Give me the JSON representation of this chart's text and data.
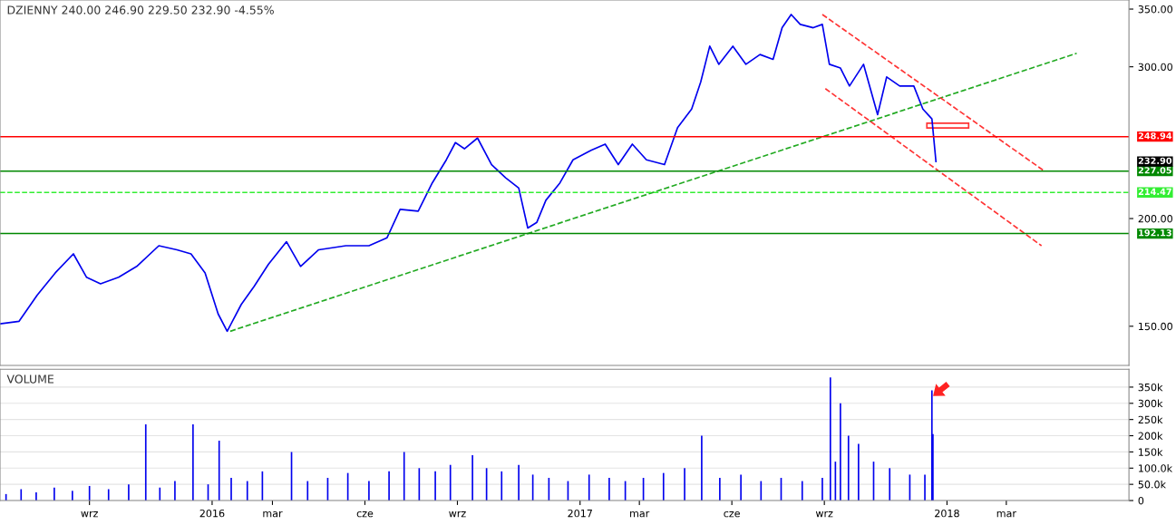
{
  "chart_data": [
    {
      "type": "line",
      "title": "DZIENNY 240.00 246.90 229.50 232.90 -4.55%",
      "log": true,
      "grid": false,
      "legend": false,
      "tick_labels": "y",
      "xlim": [
        "2015-06-04",
        "2018-07-01"
      ],
      "ylim": [
        135.1,
        358.6
      ],
      "yticks": [
        {
          "value": 150,
          "label": "150.00"
        },
        {
          "value": 200,
          "label": "200.00"
        },
        {
          "value": 300,
          "label": "300.00"
        },
        {
          "value": 350,
          "label": "350.00"
        }
      ],
      "series": [
        {
          "color": "#0000ee",
          "line_style": "solid",
          "x": [
            "2015-06-04",
            "2015-06-23",
            "2015-07-11",
            "2015-07-29",
            "2015-08-16",
            "2015-08-29",
            "2015-09-12",
            "2015-09-30",
            "2015-10-18",
            "2015-11-09",
            "2015-11-27",
            "2015-12-11",
            "2015-12-25",
            "2016-01-07",
            "2016-01-16",
            "2016-01-30",
            "2016-02-12",
            "2016-02-26",
            "2016-03-15",
            "2016-03-29",
            "2016-04-16",
            "2016-05-13",
            "2016-06-05",
            "2016-06-23",
            "2016-07-06",
            "2016-07-24",
            "2016-08-07",
            "2016-08-21",
            "2016-08-30",
            "2016-09-08",
            "2016-09-21",
            "2016-10-05",
            "2016-10-19",
            "2016-11-01",
            "2016-11-10",
            "2016-11-19",
            "2016-11-28",
            "2016-12-12",
            "2016-12-25",
            "2017-01-12",
            "2017-01-26",
            "2017-02-08",
            "2017-02-22",
            "2017-03-08",
            "2017-03-26",
            "2017-04-08",
            "2017-04-22",
            "2017-05-01",
            "2017-05-10",
            "2017-05-19",
            "2017-06-02",
            "2017-06-15",
            "2017-06-29",
            "2017-07-12",
            "2017-07-21",
            "2017-07-30",
            "2017-08-08",
            "2017-08-21",
            "2017-08-30",
            "2017-09-06",
            "2017-09-17",
            "2017-09-26",
            "2017-10-10",
            "2017-10-24",
            "2017-11-02",
            "2017-11-15",
            "2017-11-29",
            "2017-12-08",
            "2017-12-17",
            "2017-12-21"
          ],
          "values": [
            151,
            152,
            163,
            173,
            182,
            171,
            168,
            171,
            176,
            186,
            184,
            182,
            173,
            155,
            148,
            159,
            167,
            177,
            188,
            176,
            184,
            186,
            186,
            190,
            205,
            204,
            220,
            234,
            245,
            241,
            248,
            231,
            223,
            217,
            195,
            198,
            210,
            220,
            234,
            240,
            244,
            231,
            244,
            234,
            231,
            255,
            268,
            288,
            317,
            302,
            317,
            302,
            310,
            306,
            333,
            345,
            336,
            333,
            336,
            302,
            299,
            285,
            302,
            264,
            292,
            285,
            285,
            268,
            261,
            232.9
          ]
        },
        {
          "type": "line",
          "color": "#22aa22",
          "line_style": "dashed",
          "x": [
            "2016-01-19",
            "2018-05-10"
          ],
          "values": [
            148,
            311
          ]
        },
        {
          "type": "line",
          "color": "#ff3333",
          "line_style": "dashed",
          "x": [
            "2017-08-30",
            "2018-04-08"
          ],
          "values": [
            345,
            227
          ]
        },
        {
          "type": "line",
          "color": "#ff3333",
          "line_style": "dashed",
          "x": [
            "2017-09-02",
            "2018-04-05"
          ],
          "values": [
            283,
            186
          ]
        }
      ],
      "ref_lines": [
        {
          "axis": "y",
          "value": 248.94,
          "label": "248.94",
          "color": "#ff0000",
          "line_style": "solid"
        },
        {
          "axis": "y",
          "value": 227.05,
          "label": "227.05",
          "color": "#008800",
          "line_style": "solid"
        },
        {
          "axis": "y",
          "value": 214.47,
          "label": "214.47",
          "color": "#33ee33",
          "line_style": "dashed"
        },
        {
          "axis": "y",
          "value": 192.13,
          "label": "192.13",
          "color": "#008800",
          "line_style": "solid"
        }
      ],
      "annotations": [
        "232.90"
      ]
    },
    {
      "type": "bar",
      "title": "VOLUME",
      "grid": "y",
      "legend": false,
      "xlim": [
        "2015-06-04",
        "2018-07-01"
      ],
      "xticks": [
        {
          "value": "2015-09-01",
          "label": "wrz"
        },
        {
          "value": "2016-01-01",
          "label": "2016"
        },
        {
          "value": "2016-03-01",
          "label": "mar"
        },
        {
          "value": "2016-06-01",
          "label": "cze"
        },
        {
          "value": "2016-09-01",
          "label": "wrz"
        },
        {
          "value": "2017-01-01",
          "label": "2017"
        },
        {
          "value": "2017-03-01",
          "label": "mar"
        },
        {
          "value": "2017-06-01",
          "label": "cze"
        },
        {
          "value": "2017-09-01",
          "label": "wrz"
        },
        {
          "value": "2018-01-01",
          "label": "2018"
        },
        {
          "value": "2018-03-01",
          "label": "mar"
        }
      ],
      "ylim": [
        0,
        405000
      ],
      "yticks": [
        {
          "value": 0,
          "label": "0"
        },
        {
          "value": 50000,
          "label": "50.0k"
        },
        {
          "value": 100000,
          "label": "100.0k"
        },
        {
          "value": 150000,
          "label": "150k"
        },
        {
          "value": 200000,
          "label": "200k"
        },
        {
          "value": 250000,
          "label": "250k"
        },
        {
          "value": 300000,
          "label": "300k"
        },
        {
          "value": 350000,
          "label": "350k"
        }
      ],
      "series": [
        {
          "color": "#0000ee",
          "x": [
            "2015-06-10",
            "2015-06-25",
            "2015-07-10",
            "2015-07-28",
            "2015-08-15",
            "2015-09-01",
            "2015-09-20",
            "2015-10-10",
            "2015-10-27",
            "2015-11-10",
            "2015-11-25",
            "2015-12-13",
            "2015-12-28",
            "2016-01-08",
            "2016-01-20",
            "2016-02-05",
            "2016-02-20",
            "2016-03-20",
            "2016-04-05",
            "2016-04-25",
            "2016-05-15",
            "2016-06-05",
            "2016-06-25",
            "2016-07-10",
            "2016-07-25",
            "2016-08-10",
            "2016-08-25",
            "2016-09-16",
            "2016-09-30",
            "2016-10-15",
            "2016-11-01",
            "2016-11-15",
            "2016-12-01",
            "2016-12-20",
            "2017-01-10",
            "2017-01-30",
            "2017-02-15",
            "2017-03-05",
            "2017-03-25",
            "2017-04-15",
            "2017-05-02",
            "2017-05-20",
            "2017-06-10",
            "2017-06-30",
            "2017-07-20",
            "2017-08-10",
            "2017-08-30",
            "2017-09-07",
            "2017-09-12",
            "2017-09-17",
            "2017-09-25",
            "2017-10-05",
            "2017-10-20",
            "2017-11-05",
            "2017-11-25",
            "2017-12-10",
            "2017-12-17",
            "2017-12-18"
          ],
          "values": [
            20000,
            35000,
            25000,
            40000,
            30000,
            45000,
            35000,
            50000,
            235000,
            40000,
            60000,
            235000,
            50000,
            185000,
            70000,
            60000,
            90000,
            150000,
            60000,
            70000,
            85000,
            60000,
            90000,
            150000,
            100000,
            90000,
            110000,
            140000,
            100000,
            90000,
            110000,
            80000,
            70000,
            60000,
            80000,
            70000,
            60000,
            70000,
            85000,
            100000,
            200000,
            70000,
            80000,
            60000,
            70000,
            60000,
            70000,
            380000,
            120000,
            300000,
            200000,
            175000,
            120000,
            100000,
            80000,
            80000,
            340000,
            205000
          ]
        }
      ]
    }
  ]
}
